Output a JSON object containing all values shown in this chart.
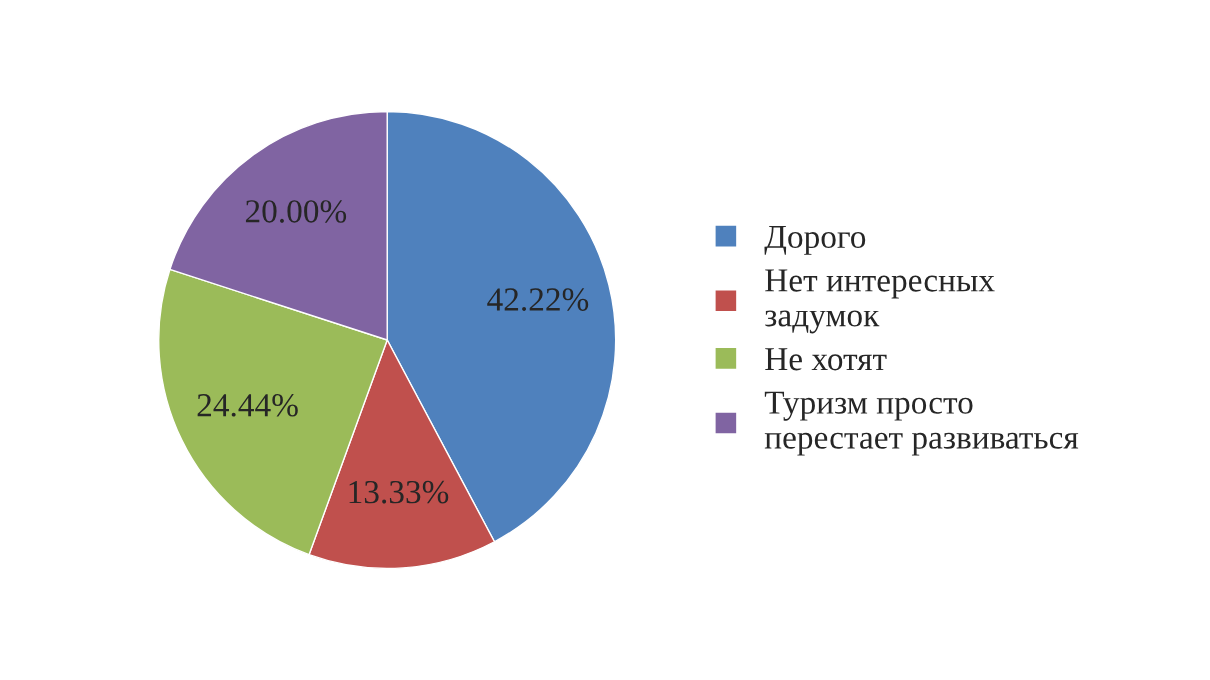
{
  "chart_data": {
    "type": "pie",
    "categories": [
      "Дорого",
      "Нет интересных\nзадумок",
      "Не хотят",
      "Туризм просто\nперестает развиваться"
    ],
    "values": [
      42.22,
      13.33,
      24.44,
      20.0
    ],
    "colors": [
      "#4f81bd",
      "#c0504d",
      "#9bbb59",
      "#8064a2"
    ],
    "value_labels": [
      "42.22%",
      "13.33%",
      "24.44%",
      "20.00%"
    ],
    "legend": "right"
  }
}
